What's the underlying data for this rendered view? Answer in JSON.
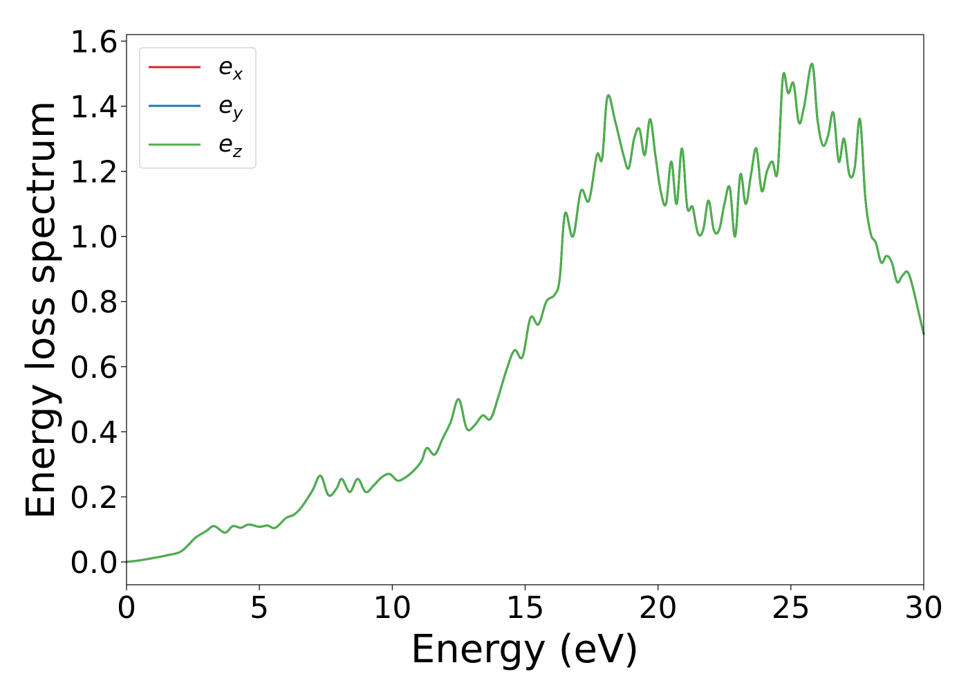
{
  "chart_data": {
    "type": "line",
    "title": "",
    "xlabel": "Energy (eV)",
    "ylabel": "Energy loss spectrum",
    "xlim": [
      0,
      30
    ],
    "ylim": [
      -0.07,
      1.62
    ],
    "xticks": [
      0,
      5,
      10,
      15,
      20,
      25,
      30
    ],
    "xtick_labels": [
      "0",
      "5",
      "10",
      "15",
      "20",
      "25",
      "30"
    ],
    "yticks": [
      0.0,
      0.2,
      0.4,
      0.6,
      0.8,
      1.0,
      1.2,
      1.4,
      1.6
    ],
    "ytick_labels": [
      "0.0",
      "0.2",
      "0.4",
      "0.6",
      "0.8",
      "1.0",
      "1.2",
      "1.4",
      "1.6"
    ],
    "grid": false,
    "legend_position": "top-left",
    "legend": [
      {
        "base": "e",
        "sub": "x",
        "color": "#d62728"
      },
      {
        "base": "e",
        "sub": "y",
        "color": "#1f77b4"
      },
      {
        "base": "e",
        "sub": "z",
        "color": "#4daf4a"
      }
    ],
    "x": [
      0,
      0.5,
      1.0,
      1.5,
      2.0,
      2.3,
      2.6,
      3.0,
      3.3,
      3.7,
      4.0,
      4.3,
      4.6,
      5.0,
      5.3,
      5.6,
      6.0,
      6.3,
      6.6,
      7.0,
      7.3,
      7.6,
      7.9,
      8.1,
      8.4,
      8.7,
      9.0,
      9.3,
      9.6,
      9.9,
      10.2,
      10.5,
      10.8,
      11.1,
      11.3,
      11.6,
      11.9,
      12.2,
      12.5,
      12.8,
      13.1,
      13.4,
      13.7,
      14.0,
      14.3,
      14.6,
      14.9,
      15.2,
      15.5,
      15.8,
      16.1,
      16.3,
      16.5,
      16.8,
      17.1,
      17.4,
      17.7,
      17.9,
      18.1,
      18.4,
      18.7,
      18.9,
      19.1,
      19.3,
      19.5,
      19.7,
      19.9,
      20.1,
      20.3,
      20.5,
      20.7,
      20.9,
      21.1,
      21.3,
      21.5,
      21.7,
      21.9,
      22.1,
      22.3,
      22.5,
      22.7,
      22.9,
      23.1,
      23.3,
      23.5,
      23.7,
      23.9,
      24.1,
      24.3,
      24.5,
      24.7,
      24.9,
      25.1,
      25.3,
      25.5,
      25.8,
      26.0,
      26.2,
      26.4,
      26.6,
      26.8,
      27.0,
      27.2,
      27.4,
      27.6,
      27.8,
      28.0,
      28.2,
      28.4,
      28.6,
      28.8,
      29.0,
      29.2,
      29.4,
      29.6,
      29.8,
      30.0
    ],
    "series": [
      {
        "legend": "x",
        "color": "#d62728",
        "values": [
          0.0,
          0.005,
          0.012,
          0.02,
          0.03,
          0.05,
          0.075,
          0.095,
          0.11,
          0.09,
          0.11,
          0.105,
          0.115,
          0.108,
          0.112,
          0.105,
          0.135,
          0.145,
          0.17,
          0.22,
          0.265,
          0.205,
          0.225,
          0.255,
          0.215,
          0.255,
          0.215,
          0.235,
          0.26,
          0.27,
          0.25,
          0.26,
          0.28,
          0.31,
          0.35,
          0.33,
          0.38,
          0.43,
          0.5,
          0.41,
          0.42,
          0.45,
          0.44,
          0.51,
          0.59,
          0.65,
          0.63,
          0.75,
          0.73,
          0.8,
          0.82,
          0.87,
          1.07,
          1.0,
          1.14,
          1.11,
          1.25,
          1.24,
          1.43,
          1.35,
          1.25,
          1.21,
          1.3,
          1.33,
          1.25,
          1.36,
          1.25,
          1.14,
          1.1,
          1.23,
          1.1,
          1.27,
          1.09,
          1.09,
          1.01,
          1.02,
          1.11,
          1.02,
          1.02,
          1.1,
          1.15,
          1.0,
          1.19,
          1.1,
          1.19,
          1.27,
          1.14,
          1.2,
          1.23,
          1.2,
          1.49,
          1.44,
          1.47,
          1.35,
          1.4,
          1.53,
          1.36,
          1.28,
          1.31,
          1.38,
          1.23,
          1.3,
          1.19,
          1.21,
          1.36,
          1.12,
          1.01,
          0.98,
          0.92,
          0.94,
          0.92,
          0.86,
          0.88,
          0.89,
          0.84,
          0.77,
          0.7
        ]
      },
      {
        "legend": "y",
        "color": "#1f77b4",
        "values": [
          0.0,
          0.005,
          0.012,
          0.02,
          0.03,
          0.05,
          0.075,
          0.095,
          0.11,
          0.09,
          0.11,
          0.105,
          0.115,
          0.108,
          0.112,
          0.105,
          0.135,
          0.145,
          0.17,
          0.22,
          0.265,
          0.205,
          0.225,
          0.255,
          0.215,
          0.255,
          0.215,
          0.235,
          0.26,
          0.27,
          0.25,
          0.26,
          0.28,
          0.31,
          0.35,
          0.33,
          0.38,
          0.43,
          0.5,
          0.41,
          0.42,
          0.45,
          0.44,
          0.51,
          0.59,
          0.65,
          0.63,
          0.75,
          0.73,
          0.8,
          0.82,
          0.87,
          1.07,
          1.0,
          1.14,
          1.11,
          1.25,
          1.24,
          1.43,
          1.35,
          1.25,
          1.21,
          1.3,
          1.33,
          1.25,
          1.36,
          1.25,
          1.14,
          1.1,
          1.23,
          1.1,
          1.27,
          1.09,
          1.09,
          1.01,
          1.02,
          1.11,
          1.02,
          1.02,
          1.1,
          1.15,
          1.0,
          1.19,
          1.1,
          1.19,
          1.27,
          1.14,
          1.2,
          1.23,
          1.2,
          1.49,
          1.44,
          1.47,
          1.35,
          1.4,
          1.53,
          1.36,
          1.28,
          1.31,
          1.38,
          1.23,
          1.3,
          1.19,
          1.21,
          1.36,
          1.12,
          1.01,
          0.98,
          0.92,
          0.94,
          0.92,
          0.86,
          0.88,
          0.89,
          0.84,
          0.77,
          0.7
        ]
      },
      {
        "legend": "z",
        "color": "#4daf4a",
        "values": [
          0.0,
          0.005,
          0.012,
          0.02,
          0.03,
          0.05,
          0.075,
          0.095,
          0.11,
          0.09,
          0.11,
          0.105,
          0.115,
          0.108,
          0.112,
          0.105,
          0.135,
          0.145,
          0.17,
          0.22,
          0.265,
          0.205,
          0.225,
          0.255,
          0.215,
          0.255,
          0.215,
          0.235,
          0.26,
          0.27,
          0.25,
          0.26,
          0.28,
          0.31,
          0.35,
          0.33,
          0.38,
          0.43,
          0.5,
          0.41,
          0.42,
          0.45,
          0.44,
          0.51,
          0.59,
          0.65,
          0.63,
          0.75,
          0.73,
          0.8,
          0.82,
          0.87,
          1.07,
          1.0,
          1.14,
          1.11,
          1.25,
          1.24,
          1.43,
          1.35,
          1.25,
          1.21,
          1.3,
          1.33,
          1.25,
          1.36,
          1.25,
          1.14,
          1.1,
          1.23,
          1.1,
          1.27,
          1.09,
          1.09,
          1.01,
          1.02,
          1.11,
          1.02,
          1.02,
          1.1,
          1.15,
          1.0,
          1.19,
          1.1,
          1.19,
          1.27,
          1.14,
          1.2,
          1.23,
          1.2,
          1.49,
          1.44,
          1.47,
          1.35,
          1.4,
          1.53,
          1.36,
          1.28,
          1.31,
          1.38,
          1.23,
          1.3,
          1.19,
          1.21,
          1.36,
          1.12,
          1.01,
          0.98,
          0.92,
          0.94,
          0.92,
          0.86,
          0.88,
          0.89,
          0.84,
          0.77,
          0.7
        ]
      }
    ]
  }
}
